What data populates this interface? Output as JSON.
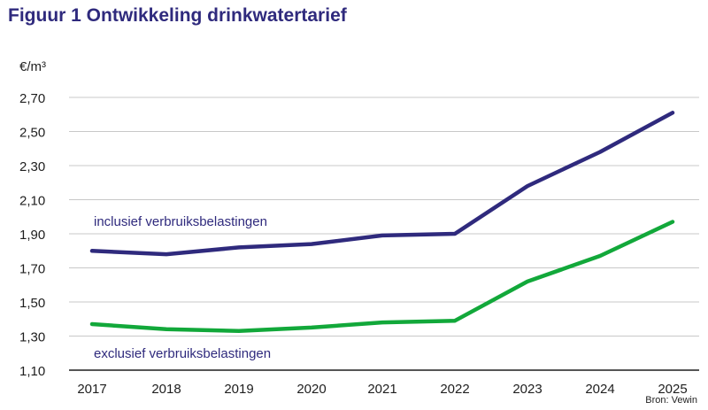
{
  "title": "Figuur 1 Ontwikkeling drinkwatertarief",
  "source": "Bron: Vewin",
  "colors": {
    "title": "#2f2a7d",
    "incl": "#2f2a7d",
    "excl": "#12a83a",
    "grid": "#c8c8c8",
    "axis": "#1e1e1e",
    "text": "#1e1e1e"
  },
  "chart_data": {
    "type": "line",
    "title": "Figuur 1 Ontwikkeling drinkwatertarief",
    "ylabel": "€/m³",
    "xlabel": "",
    "ylim": [
      1.1,
      2.7
    ],
    "yticks": [
      "2,70",
      "2,50",
      "2,30",
      "2,10",
      "1,90",
      "1,70",
      "1,50",
      "1,30",
      "1,10"
    ],
    "ytick_values": [
      2.7,
      2.5,
      2.3,
      2.1,
      1.9,
      1.7,
      1.5,
      1.3,
      1.1
    ],
    "x": [
      "2017",
      "2018",
      "2019",
      "2020",
      "2021",
      "2022",
      "2023",
      "2024",
      "2025"
    ],
    "grid": true,
    "series": [
      {
        "name": "inclusief verbruiksbelastingen",
        "color": "#2f2a7d",
        "values": [
          1.8,
          1.78,
          1.82,
          1.84,
          1.89,
          1.9,
          2.18,
          2.38,
          2.61
        ]
      },
      {
        "name": "exclusief verbruiksbelastingen",
        "color": "#12a83a",
        "values": [
          1.37,
          1.34,
          1.33,
          1.35,
          1.38,
          1.39,
          1.62,
          1.77,
          1.97
        ]
      }
    ]
  }
}
